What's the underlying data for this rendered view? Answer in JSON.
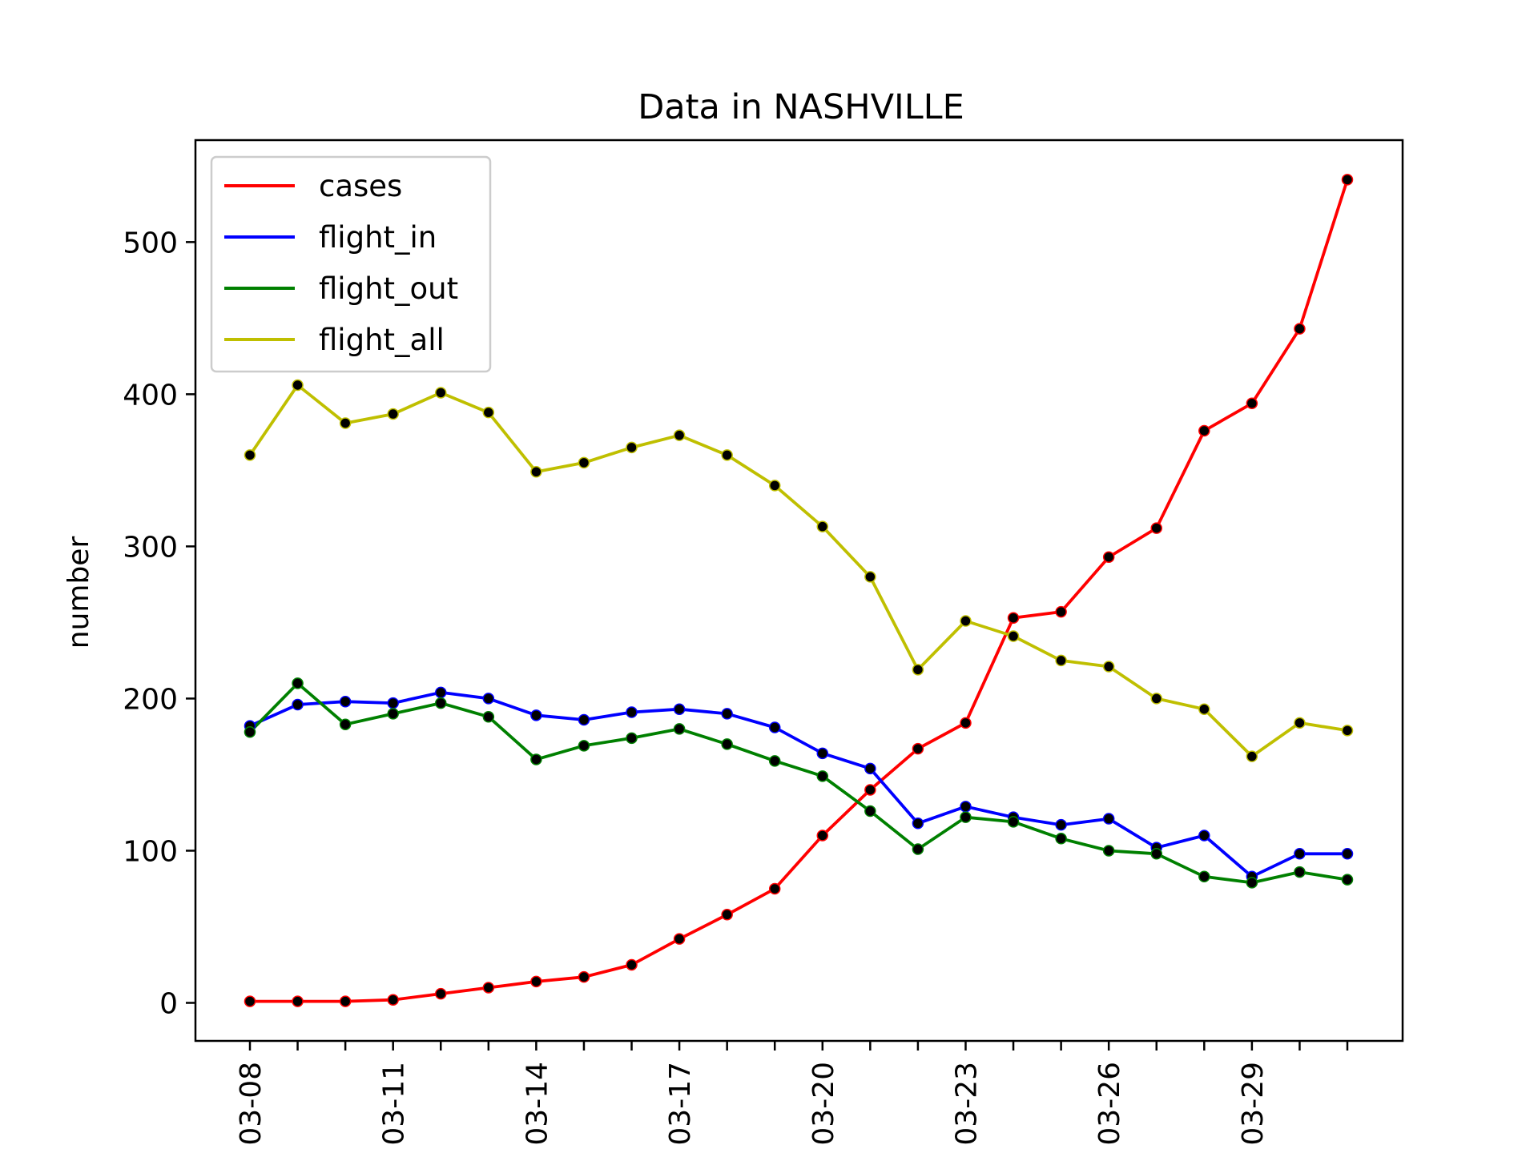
{
  "chart_data": {
    "type": "line",
    "title": "Data in NASHVILLE",
    "xlabel": "",
    "ylabel": "number",
    "x": [
      "03-08",
      "03-09",
      "03-10",
      "03-11",
      "03-12",
      "03-13",
      "03-14",
      "03-15",
      "03-16",
      "03-17",
      "03-18",
      "03-19",
      "03-20",
      "03-21",
      "03-22",
      "03-23",
      "03-24",
      "03-25",
      "03-26",
      "03-27",
      "03-28",
      "03-29",
      "03-30",
      "03-31"
    ],
    "xtick_labels": [
      "03-08",
      "03-11",
      "03-14",
      "03-17",
      "03-20",
      "03-23",
      "03-26",
      "03-29"
    ],
    "yticks": [
      0,
      100,
      200,
      300,
      400,
      500
    ],
    "ylim": [
      -25,
      567
    ],
    "grid": false,
    "legend_position": "upper-left",
    "marker_color": "#000000",
    "series": [
      {
        "name": "cases",
        "color": "#ff0000",
        "values": [
          1,
          1,
          1,
          2,
          6,
          10,
          14,
          17,
          25,
          42,
          58,
          75,
          110,
          140,
          167,
          184,
          253,
          257,
          293,
          312,
          376,
          394,
          443,
          541
        ]
      },
      {
        "name": "flight_in",
        "color": "#0000ff",
        "values": [
          182,
          196,
          198,
          197,
          204,
          200,
          189,
          186,
          191,
          193,
          190,
          181,
          164,
          154,
          118,
          129,
          122,
          117,
          121,
          102,
          110,
          83,
          98,
          98
        ]
      },
      {
        "name": "flight_out",
        "color": "#008000",
        "values": [
          178,
          210,
          183,
          190,
          197,
          188,
          160,
          169,
          174,
          180,
          170,
          159,
          149,
          126,
          101,
          122,
          119,
          108,
          100,
          98,
          83,
          79,
          86,
          81
        ]
      },
      {
        "name": "flight_all",
        "color": "#bfbf00",
        "values": [
          360,
          406,
          381,
          387,
          401,
          388,
          349,
          355,
          365,
          373,
          360,
          340,
          313,
          280,
          219,
          251,
          241,
          225,
          221,
          200,
          193,
          162,
          184,
          179
        ]
      }
    ]
  }
}
